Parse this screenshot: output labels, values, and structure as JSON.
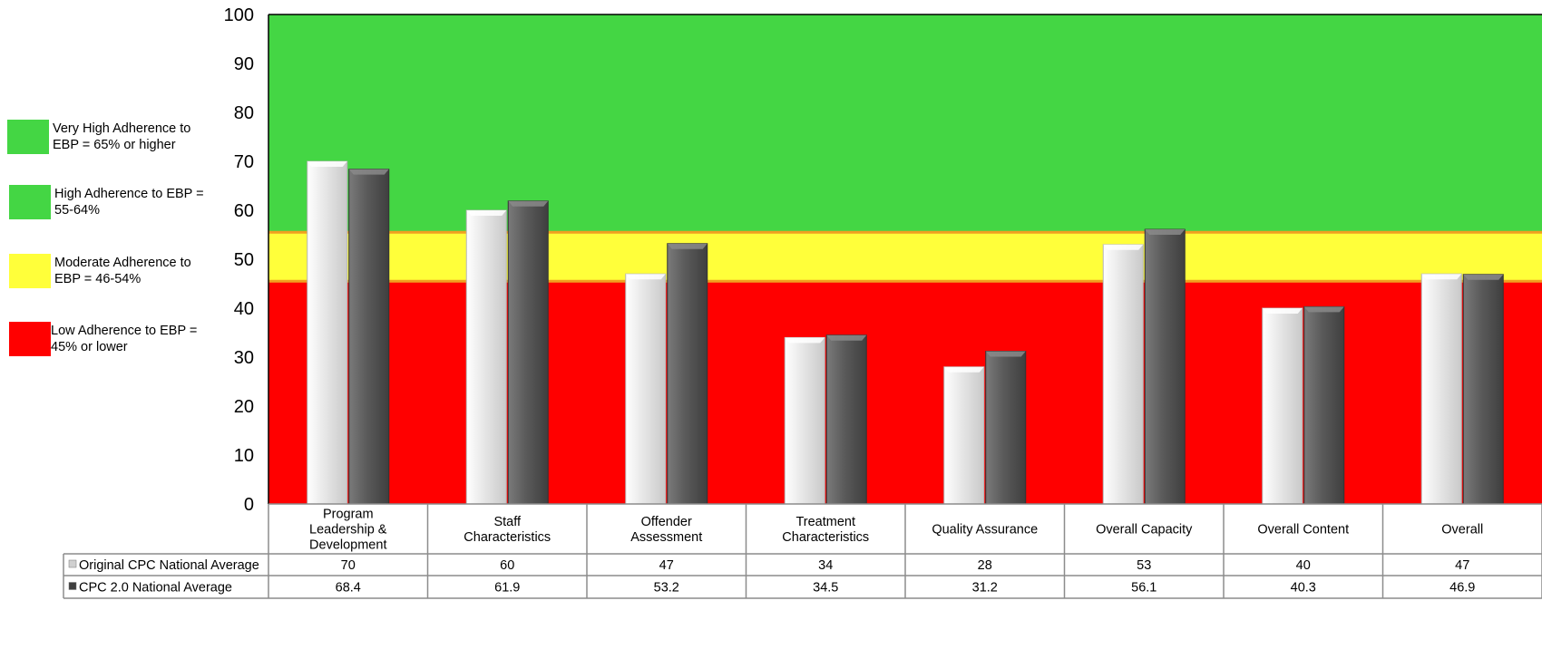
{
  "chart_data": {
    "type": "bar",
    "title": "",
    "xlabel": "",
    "ylabel": "",
    "ylim": [
      0,
      100
    ],
    "yticks": [
      0,
      10,
      20,
      30,
      40,
      50,
      60,
      70,
      80,
      90,
      100
    ],
    "categories": [
      [
        "Program",
        "Leadership &",
        "Development"
      ],
      [
        "Staff",
        "Characteristics"
      ],
      [
        "Offender",
        "Assessment"
      ],
      [
        "Treatment",
        "Characteristics"
      ],
      [
        "Quality Assurance"
      ],
      [
        "Overall Capacity"
      ],
      [
        "Overall Content"
      ],
      [
        "Overall"
      ]
    ],
    "series": [
      {
        "name": "Original CPC National Average",
        "color": "#e3e3e3",
        "values": [
          "70",
          "60",
          "47",
          "34",
          "28",
          "53",
          "40",
          "47"
        ]
      },
      {
        "name": "CPC 2.0 National Average",
        "color": "#5a5a5a",
        "values": [
          "68.4",
          "61.9",
          "53.2",
          "34.5",
          "31.2",
          "56.1",
          "40.3",
          "46.9"
        ]
      }
    ],
    "background_bands": [
      {
        "from": 0,
        "to": 45.5,
        "color": "#ff0000"
      },
      {
        "from": 45.5,
        "to": 55.5,
        "color": "#ffff3a"
      },
      {
        "from": 55.5,
        "to": 100,
        "color": "#44d644"
      }
    ],
    "grid": false,
    "data_table": true
  },
  "legend": [
    {
      "color": "#44d644",
      "lines": [
        "Very High Adherence to",
        "EBP = 65% or higher"
      ]
    },
    {
      "color": "#44d644",
      "lines": [
        "High Adherence to EBP =",
        "55-64%"
      ]
    },
    {
      "color": "#ffff3a",
      "lines": [
        "Moderate Adherence to",
        "EBP = 46-54%"
      ]
    },
    {
      "color": "#ff0000",
      "lines": [
        "Low Adherence to EBP =",
        "45% or lower"
      ]
    }
  ]
}
